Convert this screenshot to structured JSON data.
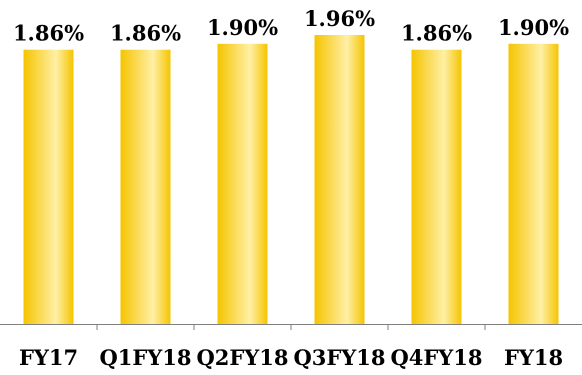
{
  "chart_data": {
    "type": "bar",
    "title": "",
    "xlabel": "",
    "ylabel": "",
    "categories": [
      "FY17",
      "Q1FY18",
      "Q2FY18",
      "Q3FY18",
      "Q4FY18",
      "FY18"
    ],
    "values": [
      1.86,
      1.86,
      1.9,
      1.96,
      1.86,
      1.9
    ],
    "data_labels": [
      "1.86%",
      "1.86%",
      "1.90%",
      "1.96%",
      "1.86%",
      "1.90%"
    ],
    "unit": "%",
    "ylim": [
      0,
      1.96
    ],
    "grid": false,
    "legend": "none",
    "colors": {
      "bar_edge": "#f5c400",
      "bar_mid": "#fff0a6",
      "axis": "#7f7f7f"
    }
  }
}
